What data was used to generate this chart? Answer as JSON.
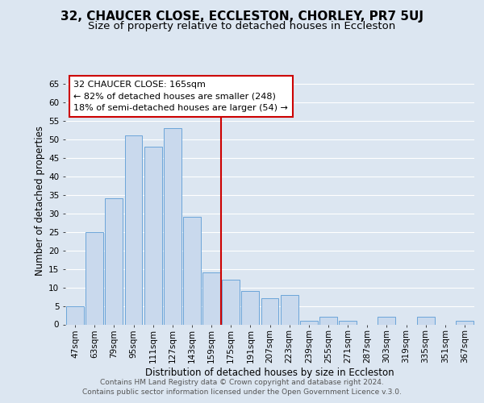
{
  "title": "32, CHAUCER CLOSE, ECCLESTON, CHORLEY, PR7 5UJ",
  "subtitle": "Size of property relative to detached houses in Eccleston",
  "xlabel": "Distribution of detached houses by size in Eccleston",
  "ylabel": "Number of detached properties",
  "categories": [
    "47sqm",
    "63sqm",
    "79sqm",
    "95sqm",
    "111sqm",
    "127sqm",
    "143sqm",
    "159sqm",
    "175sqm",
    "191sqm",
    "207sqm",
    "223sqm",
    "239sqm",
    "255sqm",
    "271sqm",
    "287sqm",
    "303sqm",
    "319sqm",
    "335sqm",
    "351sqm",
    "367sqm"
  ],
  "values": [
    5,
    25,
    34,
    51,
    48,
    53,
    29,
    14,
    12,
    9,
    7,
    8,
    1,
    2,
    1,
    0,
    2,
    0,
    2,
    0,
    1
  ],
  "bar_color": "#c9d9ed",
  "bar_edge_color": "#5b9bd5",
  "reference_line_x": 7.5,
  "reference_line_color": "#cc0000",
  "annotation_title": "32 CHAUCER CLOSE: 165sqm",
  "annotation_line1": "← 82% of detached houses are smaller (248)",
  "annotation_line2": "18% of semi-detached houses are larger (54) →",
  "annotation_box_color": "#cc0000",
  "ylim": [
    0,
    67
  ],
  "yticks": [
    0,
    5,
    10,
    15,
    20,
    25,
    30,
    35,
    40,
    45,
    50,
    55,
    60,
    65
  ],
  "bg_color": "#dce6f1",
  "plot_bg_color": "#dce6f1",
  "footer1": "Contains HM Land Registry data © Crown copyright and database right 2024.",
  "footer2": "Contains public sector information licensed under the Open Government Licence v.3.0.",
  "title_fontsize": 11,
  "subtitle_fontsize": 9.5,
  "axis_label_fontsize": 8.5,
  "tick_fontsize": 7.5,
  "annotation_fontsize": 8,
  "footer_fontsize": 6.5
}
